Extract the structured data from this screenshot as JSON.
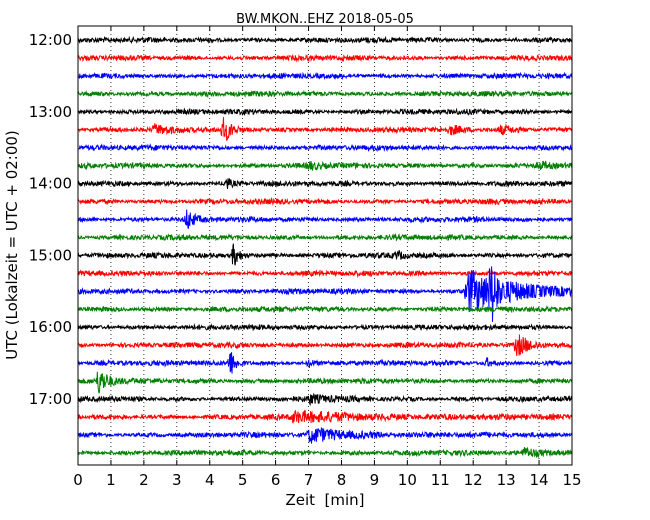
{
  "chart_data": {
    "type": "line",
    "title": "BW.MKON..EHZ 2018-05-05",
    "xlabel": "Zeit  [min]",
    "ylabel": "UTC (Lokalzeit = UTC + 02:00)",
    "xlim": [
      0,
      15
    ],
    "xticks": [
      0,
      1,
      2,
      3,
      4,
      5,
      6,
      7,
      8,
      9,
      10,
      11,
      12,
      13,
      14,
      15
    ],
    "ytick_labels": [
      "12:00",
      "13:00",
      "14:00",
      "15:00",
      "16:00",
      "17:00"
    ],
    "grid": "vertical dotted",
    "trace_interval_min": 15,
    "trace_colors": [
      "#000000",
      "#ff0000",
      "#0000ff",
      "#008000"
    ],
    "traces": [
      {
        "start": "12:00",
        "color": "#000000",
        "events": []
      },
      {
        "start": "12:15",
        "color": "#ff0000",
        "events": []
      },
      {
        "start": "12:30",
        "color": "#0000ff",
        "events": []
      },
      {
        "start": "12:45",
        "color": "#008000",
        "events": []
      },
      {
        "start": "13:00",
        "color": "#000000",
        "events": []
      },
      {
        "start": "13:15",
        "color": "#ff0000",
        "events": [
          {
            "t": 2.3,
            "amp": 0.35,
            "dur": 0.6
          },
          {
            "t": 4.4,
            "amp": 1.0,
            "dur": 0.4
          },
          {
            "t": 11.3,
            "amp": 0.3,
            "dur": 0.6
          },
          {
            "t": 12.8,
            "amp": 0.3,
            "dur": 0.8
          }
        ]
      },
      {
        "start": "13:30",
        "color": "#0000ff",
        "events": []
      },
      {
        "start": "13:45",
        "color": "#008000",
        "events": [
          {
            "t": 7.0,
            "amp": 0.25,
            "dur": 0.6
          },
          {
            "t": 14.0,
            "amp": 0.25,
            "dur": 0.6
          }
        ]
      },
      {
        "start": "14:00",
        "color": "#000000",
        "events": [
          {
            "t": 4.5,
            "amp": 0.5,
            "dur": 0.2
          }
        ]
      },
      {
        "start": "14:15",
        "color": "#ff0000",
        "events": []
      },
      {
        "start": "14:30",
        "color": "#0000ff",
        "events": [
          {
            "t": 3.3,
            "amp": 0.9,
            "dur": 0.3
          }
        ]
      },
      {
        "start": "14:45",
        "color": "#008000",
        "events": []
      },
      {
        "start": "15:00",
        "color": "#000000",
        "events": [
          {
            "t": 4.7,
            "amp": 1.0,
            "dur": 0.3
          },
          {
            "t": 9.7,
            "amp": 0.3,
            "dur": 0.3
          }
        ]
      },
      {
        "start": "15:15",
        "color": "#ff0000",
        "events": []
      },
      {
        "start": "15:30",
        "color": "#0000ff",
        "events": [
          {
            "t": 11.8,
            "amp": 1.6,
            "dur": 3.0,
            "big": true
          }
        ]
      },
      {
        "start": "15:45",
        "color": "#008000",
        "events": []
      },
      {
        "start": "16:00",
        "color": "#000000",
        "events": []
      },
      {
        "start": "16:15",
        "color": "#ff0000",
        "events": [
          {
            "t": 13.3,
            "amp": 0.8,
            "dur": 0.8
          }
        ]
      },
      {
        "start": "16:30",
        "color": "#0000ff",
        "events": [
          {
            "t": 4.6,
            "amp": 1.1,
            "dur": 0.3
          },
          {
            "t": 7.0,
            "amp": 0.4,
            "dur": 0.2
          },
          {
            "t": 12.4,
            "amp": 0.4,
            "dur": 0.2
          }
        ]
      },
      {
        "start": "16:45",
        "color": "#008000",
        "events": [
          {
            "t": 0.6,
            "amp": 1.0,
            "dur": 0.5
          }
        ]
      },
      {
        "start": "17:00",
        "color": "#000000",
        "events": [
          {
            "t": 7.0,
            "amp": 0.3,
            "dur": 1.0
          }
        ]
      },
      {
        "start": "17:15",
        "color": "#ff0000",
        "events": [
          {
            "t": 6.5,
            "amp": 0.35,
            "dur": 4.5
          }
        ]
      },
      {
        "start": "17:30",
        "color": "#0000ff",
        "events": [
          {
            "t": 7.0,
            "amp": 0.5,
            "dur": 2.5
          }
        ]
      },
      {
        "start": "17:45",
        "color": "#008000",
        "events": [
          {
            "t": 13.5,
            "amp": 0.3,
            "dur": 1.5
          }
        ]
      }
    ]
  }
}
